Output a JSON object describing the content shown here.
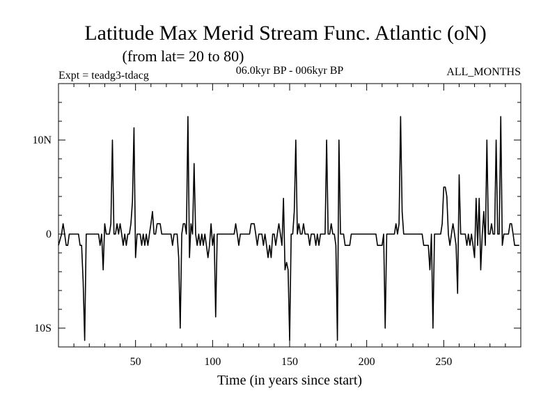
{
  "chart_data": {
    "type": "line",
    "title": "Latitude Max Merid Stream Func. Atlantic (oN)",
    "subtitle": "(from lat= 20 to 80)",
    "header_left": "Expt = teadg3-tdacg",
    "header_center": "06.0kyr BP - 006kyr BP",
    "header_right": "ALL_MONTHS",
    "xlabel": "Time (in years since start)",
    "ylabel": "",
    "xlim": [
      0,
      300
    ],
    "ylim": [
      -12,
      16
    ],
    "x_ticks": [
      50,
      100,
      150,
      200,
      250
    ],
    "x_tick_labels": [
      "50",
      "100",
      "150",
      "200",
      "250"
    ],
    "y_ticks": [
      10,
      0,
      -10
    ],
    "y_tick_labels": [
      "10N",
      "0",
      "10S"
    ],
    "series": [
      {
        "name": "Latitude Max",
        "color": "#000000",
        "points": [
          [
            0,
            -1.2
          ],
          [
            2,
            0
          ],
          [
            3,
            1.1
          ],
          [
            4,
            0
          ],
          [
            5,
            -1.2
          ],
          [
            6,
            -1.2
          ],
          [
            7,
            0
          ],
          [
            9,
            0
          ],
          [
            11,
            0
          ],
          [
            12,
            0
          ],
          [
            13,
            0
          ],
          [
            14,
            -1.2
          ],
          [
            15,
            -1.2
          ],
          [
            16,
            -5
          ],
          [
            17,
            -11.3
          ],
          [
            18,
            0
          ],
          [
            20,
            0
          ],
          [
            24,
            0
          ],
          [
            25,
            0
          ],
          [
            26,
            0
          ],
          [
            27,
            -1.2
          ],
          [
            28,
            0
          ],
          [
            29,
            -3.8
          ],
          [
            30,
            1.1
          ],
          [
            31,
            0
          ],
          [
            32,
            0
          ],
          [
            33,
            0
          ],
          [
            34,
            1.1
          ],
          [
            35,
            10
          ],
          [
            36,
            0
          ],
          [
            37,
            0
          ],
          [
            38,
            1.1
          ],
          [
            39,
            0
          ],
          [
            40,
            1.1
          ],
          [
            41,
            0
          ],
          [
            42,
            -1.2
          ],
          [
            43,
            0
          ],
          [
            44,
            -1.2
          ],
          [
            45,
            0
          ],
          [
            46,
            0
          ],
          [
            47,
            1.1
          ],
          [
            48,
            3.5
          ],
          [
            49,
            11.3
          ],
          [
            50,
            -2.5
          ],
          [
            51,
            0
          ],
          [
            52,
            0
          ],
          [
            53,
            0
          ],
          [
            54,
            -1.2
          ],
          [
            55,
            0
          ],
          [
            56,
            -1.2
          ],
          [
            57,
            0
          ],
          [
            58,
            -1.2
          ],
          [
            59,
            0
          ],
          [
            60,
            1.1
          ],
          [
            61,
            2.4
          ],
          [
            62,
            0
          ],
          [
            63,
            0
          ],
          [
            64,
            1.1
          ],
          [
            65,
            1.1
          ],
          [
            66,
            1.1
          ],
          [
            67,
            0
          ],
          [
            68,
            0
          ],
          [
            69,
            0
          ],
          [
            70,
            0
          ],
          [
            72,
            0
          ],
          [
            73,
            0
          ],
          [
            74,
            -1.2
          ],
          [
            75,
            0
          ],
          [
            76,
            0
          ],
          [
            77,
            0
          ],
          [
            78,
            -2.5
          ],
          [
            79,
            -10
          ],
          [
            80,
            0
          ],
          [
            81,
            1.1
          ],
          [
            82,
            1.1
          ],
          [
            83,
            0
          ],
          [
            84,
            12.5
          ],
          [
            85,
            -2.5
          ],
          [
            86,
            1.1
          ],
          [
            87,
            0
          ],
          [
            88,
            7.5
          ],
          [
            89,
            0
          ],
          [
            90,
            -1.2
          ],
          [
            91,
            0
          ],
          [
            92,
            -1.2
          ],
          [
            93,
            0
          ],
          [
            94,
            -1.2
          ],
          [
            95,
            0
          ],
          [
            96,
            -1.2
          ],
          [
            97,
            -2.5
          ],
          [
            98,
            -1.2
          ],
          [
            99,
            1.1
          ],
          [
            100,
            -1.2
          ],
          [
            101,
            0
          ],
          [
            102,
            -8.8
          ],
          [
            103,
            0
          ],
          [
            104,
            0
          ],
          [
            106,
            0
          ],
          [
            108,
            0
          ],
          [
            109,
            0
          ],
          [
            110,
            0
          ],
          [
            112,
            0
          ],
          [
            114,
            0
          ],
          [
            115,
            1.1
          ],
          [
            116,
            0
          ],
          [
            117,
            -1.2
          ],
          [
            118,
            0
          ],
          [
            120,
            0
          ],
          [
            122,
            0
          ],
          [
            124,
            0
          ],
          [
            125,
            1.1
          ],
          [
            126,
            1.1
          ],
          [
            127,
            1.1
          ],
          [
            128,
            0
          ],
          [
            129,
            -1.2
          ],
          [
            130,
            0
          ],
          [
            131,
            0
          ],
          [
            132,
            0
          ],
          [
            133,
            -1.2
          ],
          [
            134,
            0
          ],
          [
            135,
            -1.2
          ],
          [
            136,
            -2.5
          ],
          [
            137,
            -1.2
          ],
          [
            138,
            -2.5
          ],
          [
            139,
            0
          ],
          [
            140,
            0
          ],
          [
            141,
            -1.2
          ],
          [
            142,
            0
          ],
          [
            143,
            1.1
          ],
          [
            144,
            0
          ],
          [
            145,
            -1.2
          ],
          [
            146,
            3.8
          ],
          [
            147,
            -3.8
          ],
          [
            148,
            -3
          ],
          [
            149,
            -3.8
          ],
          [
            150,
            -11.3
          ],
          [
            151,
            0
          ],
          [
            152,
            0
          ],
          [
            153,
            2.4
          ],
          [
            154,
            10
          ],
          [
            155,
            0
          ],
          [
            156,
            1.1
          ],
          [
            157,
            0
          ],
          [
            158,
            0
          ],
          [
            159,
            1.1
          ],
          [
            160,
            0
          ],
          [
            161,
            0
          ],
          [
            162,
            0
          ],
          [
            163,
            -1.2
          ],
          [
            164,
            0
          ],
          [
            165,
            0
          ],
          [
            166,
            0
          ],
          [
            167,
            -1.2
          ],
          [
            168,
            0
          ],
          [
            169,
            -1.2
          ],
          [
            170,
            0
          ],
          [
            171,
            0
          ],
          [
            172,
            0
          ],
          [
            173,
            0
          ],
          [
            174,
            10
          ],
          [
            175,
            0
          ],
          [
            176,
            0
          ],
          [
            177,
            1.1
          ],
          [
            178,
            0
          ],
          [
            179,
            0
          ],
          [
            180,
            -1.2
          ],
          [
            181,
            -11.3
          ],
          [
            182,
            10
          ],
          [
            183,
            0
          ],
          [
            184,
            0
          ],
          [
            185,
            0
          ],
          [
            186,
            -1.2
          ],
          [
            187,
            -1.2
          ],
          [
            188,
            -1.2
          ],
          [
            189,
            -1.2
          ],
          [
            190,
            0
          ],
          [
            192,
            0
          ],
          [
            194,
            0
          ],
          [
            196,
            0
          ],
          [
            198,
            0
          ],
          [
            200,
            0
          ],
          [
            202,
            0
          ],
          [
            204,
            0
          ],
          [
            206,
            0
          ],
          [
            207,
            -1.2
          ],
          [
            208,
            -1.2
          ],
          [
            209,
            -1.2
          ],
          [
            210,
            -1.2
          ],
          [
            211,
            0
          ],
          [
            212,
            -10
          ],
          [
            213,
            0
          ],
          [
            214,
            0
          ],
          [
            215,
            0
          ],
          [
            216,
            0
          ],
          [
            217,
            0
          ],
          [
            218,
            0
          ],
          [
            219,
            1.1
          ],
          [
            220,
            0
          ],
          [
            221,
            1.1
          ],
          [
            222,
            12.5
          ],
          [
            223,
            2.4
          ],
          [
            224,
            0
          ],
          [
            225,
            0
          ],
          [
            226,
            0
          ],
          [
            227,
            0
          ],
          [
            228,
            0
          ],
          [
            229,
            0
          ],
          [
            230,
            0
          ],
          [
            232,
            0
          ],
          [
            234,
            0
          ],
          [
            236,
            0
          ],
          [
            237,
            -1.2
          ],
          [
            238,
            -1.2
          ],
          [
            239,
            -1.2
          ],
          [
            240,
            -1.2
          ],
          [
            241,
            -3.8
          ],
          [
            242,
            0
          ],
          [
            243,
            -10
          ],
          [
            244,
            0
          ],
          [
            245,
            0
          ],
          [
            246,
            0
          ],
          [
            247,
            0
          ],
          [
            248,
            0
          ],
          [
            249,
            1.1
          ],
          [
            250,
            5
          ],
          [
            251,
            5
          ],
          [
            252,
            4
          ],
          [
            253,
            0
          ],
          [
            254,
            -1.2
          ],
          [
            255,
            0
          ],
          [
            256,
            1.1
          ],
          [
            257,
            0
          ],
          [
            258,
            -1.2
          ],
          [
            259,
            -6.3
          ],
          [
            260,
            6.3
          ],
          [
            261,
            0
          ],
          [
            262,
            0
          ],
          [
            263,
            0
          ],
          [
            264,
            0
          ],
          [
            265,
            -1.2
          ],
          [
            266,
            0
          ],
          [
            267,
            -1.2
          ],
          [
            268,
            0
          ],
          [
            269,
            -1.2
          ],
          [
            270,
            -2.5
          ],
          [
            271,
            3.8
          ],
          [
            272,
            -1.2
          ],
          [
            273,
            3.8
          ],
          [
            274,
            -3.8
          ],
          [
            275,
            0
          ],
          [
            276,
            2.4
          ],
          [
            277,
            -1.2
          ],
          [
            278,
            10
          ],
          [
            279,
            0
          ],
          [
            280,
            0
          ],
          [
            281,
            1.1
          ],
          [
            282,
            0
          ],
          [
            283,
            0
          ],
          [
            284,
            10
          ],
          [
            285,
            0
          ],
          [
            286,
            0
          ],
          [
            287,
            12.5
          ],
          [
            288,
            -1.2
          ],
          [
            289,
            0
          ],
          [
            290,
            0
          ],
          [
            291,
            0
          ],
          [
            292,
            0
          ],
          [
            293,
            1.1
          ],
          [
            294,
            1.1
          ],
          [
            295,
            0
          ],
          [
            296,
            -1.2
          ],
          [
            297,
            -1.2
          ],
          [
            298,
            -1.2
          ],
          [
            299,
            -1.2
          ]
        ]
      }
    ]
  }
}
